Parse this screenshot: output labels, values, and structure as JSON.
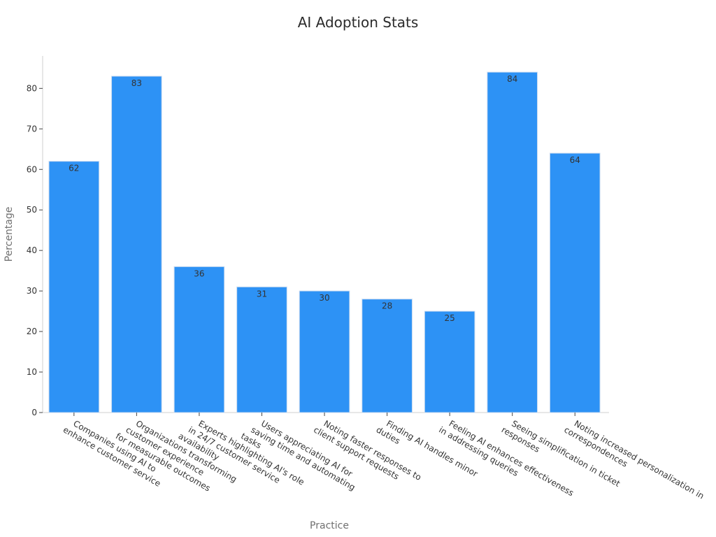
{
  "chart_data": {
    "type": "bar",
    "title": "AI Adoption Stats",
    "xlabel": "Practice",
    "ylabel": "Percentage",
    "categories": [
      "Companies using AI to\nenhance customer service",
      "Organizations transforming\ncustomer experience\nfor measurable outcomes",
      "Experts highlighting AI's role\nin 24/7 customer service\navailability",
      "Users appreciating AI for\nsaving time and automating\ntasks",
      "Noting faster responses to\nclient support requests",
      "Finding AI handles minor\nduties",
      "Feeling AI enhances effectiveness\nin addressing queries",
      "Seeing simplification in ticket\nresponses",
      "Noting increased personalization in\ncorrespondences"
    ],
    "values": [
      62,
      83,
      36,
      31,
      30,
      28,
      25,
      84,
      64
    ],
    "data_labels": [
      "62",
      "83",
      "36",
      "31",
      "30",
      "28",
      "25",
      "84",
      "64"
    ],
    "yticks": [
      0,
      10,
      20,
      30,
      40,
      50,
      60,
      70,
      80
    ],
    "ytick_labels": [
      "0",
      "10",
      "20",
      "30",
      "40",
      "50",
      "60",
      "70",
      "80"
    ],
    "ylim": [
      0,
      88
    ],
    "grid": false,
    "legend": "none",
    "colors": {
      "bar": "#2d92f5",
      "bar_edge": "#c8daf0",
      "axis": "#cfcfcf",
      "tick_text": "#333333",
      "axis_label": "#707070",
      "data_label": "#333333"
    }
  }
}
